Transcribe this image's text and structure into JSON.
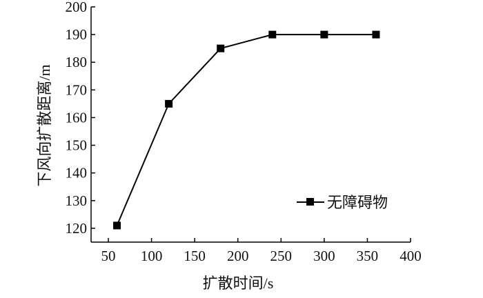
{
  "chart_data": {
    "type": "line",
    "xlabel": "扩散时间/s",
    "ylabel": "下风向扩散距离/m",
    "xlim": [
      30,
      400
    ],
    "ylim": [
      115,
      200
    ],
    "xticks": [
      50,
      100,
      150,
      200,
      250,
      300,
      350,
      400
    ],
    "yticks": [
      120,
      130,
      140,
      150,
      160,
      170,
      180,
      190,
      200
    ],
    "grid": false,
    "legend_position": "right",
    "series": [
      {
        "name": "无障碍物",
        "marker": "square",
        "color": "#000000",
        "x": [
          60,
          120,
          180,
          240,
          300,
          360
        ],
        "y": [
          121,
          165,
          185,
          190,
          190,
          190
        ]
      }
    ]
  }
}
